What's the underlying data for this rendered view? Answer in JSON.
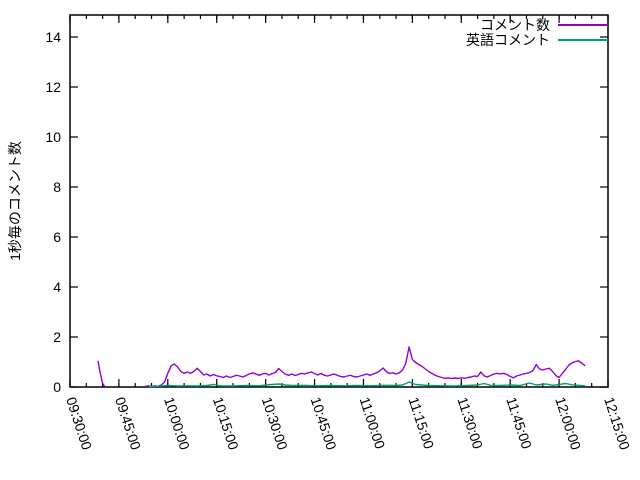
{
  "chart_data": {
    "type": "line",
    "title": "",
    "xlabel": "",
    "ylabel": "1秒毎のコメント数",
    "background": "#ffffff",
    "axis_color": "#000000",
    "text_color": "#000000",
    "grid": false,
    "legend_position": "top-right-inside",
    "x_unit": "minutes-after-09:30:00",
    "x_range": [
      0,
      165
    ],
    "y_range": [
      0,
      14.88
    ],
    "x_major_ticks": {
      "values": [
        0,
        15,
        30,
        45,
        60,
        75,
        90,
        105,
        120,
        135,
        150,
        165
      ],
      "labels": [
        "09:30:00",
        "09:45:00",
        "10:00:00",
        "10:15:00",
        "10:30:00",
        "10:45:00",
        "11:00:00",
        "11:15:00",
        "11:30:00",
        "11:45:00",
        "12:00:00",
        "12:15:00"
      ],
      "rotation_deg": 72
    },
    "x_minor_step": 5,
    "y_major_ticks": {
      "values": [
        0,
        2,
        4,
        6,
        8,
        10,
        12,
        14
      ],
      "labels": [
        "0",
        "2",
        "4",
        "6",
        "8",
        "10",
        "12",
        "14"
      ]
    },
    "series": [
      {
        "name": "コメント数",
        "color": "#9400d3",
        "points": [
          [
            8.6,
            1.05
          ],
          [
            9.2,
            0.6
          ],
          [
            10,
            0.15
          ],
          [
            10.6,
            0.02
          ],
          [
            11,
            null
          ],
          [
            23,
            0.02
          ],
          [
            24,
            0.05
          ],
          [
            25,
            0.02
          ],
          [
            26,
            0.05
          ],
          [
            27,
            0.03
          ],
          [
            28,
            0.08
          ],
          [
            29,
            0.2
          ],
          [
            30,
            0.55
          ],
          [
            31,
            0.85
          ],
          [
            32,
            0.92
          ],
          [
            33,
            0.8
          ],
          [
            34,
            0.62
          ],
          [
            35,
            0.55
          ],
          [
            36,
            0.6
          ],
          [
            37,
            0.55
          ],
          [
            38,
            0.62
          ],
          [
            39,
            0.75
          ],
          [
            40,
            0.62
          ],
          [
            41,
            0.48
          ],
          [
            42,
            0.52
          ],
          [
            43,
            0.44
          ],
          [
            44,
            0.5
          ],
          [
            45,
            0.45
          ],
          [
            46,
            0.42
          ],
          [
            47,
            0.38
          ],
          [
            48,
            0.44
          ],
          [
            49,
            0.38
          ],
          [
            50,
            0.42
          ],
          [
            51,
            0.47
          ],
          [
            52,
            0.44
          ],
          [
            53,
            0.4
          ],
          [
            54,
            0.46
          ],
          [
            55,
            0.52
          ],
          [
            56,
            0.57
          ],
          [
            57,
            0.52
          ],
          [
            58,
            0.47
          ],
          [
            59,
            0.52
          ],
          [
            60,
            0.55
          ],
          [
            61,
            0.48
          ],
          [
            62,
            0.54
          ],
          [
            63,
            0.58
          ],
          [
            64,
            0.74
          ],
          [
            65,
            0.62
          ],
          [
            66,
            0.52
          ],
          [
            67,
            0.47
          ],
          [
            68,
            0.52
          ],
          [
            69,
            0.46
          ],
          [
            70,
            0.5
          ],
          [
            71,
            0.55
          ],
          [
            72,
            0.52
          ],
          [
            73,
            0.57
          ],
          [
            74,
            0.6
          ],
          [
            75,
            0.54
          ],
          [
            76,
            0.48
          ],
          [
            77,
            0.54
          ],
          [
            78,
            0.47
          ],
          [
            79,
            0.44
          ],
          [
            80,
            0.48
          ],
          [
            81,
            0.52
          ],
          [
            82,
            0.47
          ],
          [
            83,
            0.42
          ],
          [
            84,
            0.4
          ],
          [
            85,
            0.44
          ],
          [
            86,
            0.47
          ],
          [
            87,
            0.42
          ],
          [
            88,
            0.4
          ],
          [
            89,
            0.44
          ],
          [
            90,
            0.48
          ],
          [
            91,
            0.52
          ],
          [
            92,
            0.47
          ],
          [
            93,
            0.52
          ],
          [
            94,
            0.57
          ],
          [
            95,
            0.64
          ],
          [
            96,
            0.76
          ],
          [
            97,
            0.62
          ],
          [
            98,
            0.54
          ],
          [
            99,
            0.57
          ],
          [
            100,
            0.52
          ],
          [
            101,
            0.57
          ],
          [
            102,
            0.68
          ],
          [
            103,
            0.95
          ],
          [
            104,
            1.6
          ],
          [
            105,
            1.1
          ],
          [
            106,
            0.98
          ],
          [
            107,
            0.9
          ],
          [
            108,
            0.82
          ],
          [
            109,
            0.72
          ],
          [
            110,
            0.62
          ],
          [
            111,
            0.54
          ],
          [
            112,
            0.47
          ],
          [
            113,
            0.42
          ],
          [
            114,
            0.38
          ],
          [
            115,
            0.35
          ],
          [
            116,
            0.37
          ],
          [
            117,
            0.34
          ],
          [
            118,
            0.36
          ],
          [
            119,
            0.34
          ],
          [
            120,
            0.37
          ],
          [
            121,
            0.35
          ],
          [
            122,
            0.38
          ],
          [
            123,
            0.4
          ],
          [
            124,
            0.44
          ],
          [
            125,
            0.42
          ],
          [
            126,
            0.6
          ],
          [
            127,
            0.45
          ],
          [
            128,
            0.4
          ],
          [
            129,
            0.46
          ],
          [
            130,
            0.52
          ],
          [
            131,
            0.55
          ],
          [
            132,
            0.52
          ],
          [
            133,
            0.55
          ],
          [
            134,
            0.5
          ],
          [
            135,
            0.42
          ],
          [
            136,
            0.37
          ],
          [
            137,
            0.44
          ],
          [
            138,
            0.48
          ],
          [
            139,
            0.52
          ],
          [
            140,
            0.55
          ],
          [
            141,
            0.58
          ],
          [
            142,
            0.66
          ],
          [
            143,
            0.9
          ],
          [
            144,
            0.72
          ],
          [
            145,
            0.68
          ],
          [
            146,
            0.72
          ],
          [
            147,
            0.75
          ],
          [
            148,
            0.62
          ],
          [
            149,
            0.46
          ],
          [
            150,
            0.38
          ],
          [
            151,
            0.55
          ],
          [
            152,
            0.7
          ],
          [
            153,
            0.88
          ],
          [
            154,
            0.96
          ],
          [
            155,
            1.02
          ],
          [
            156,
            1.05
          ],
          [
            157,
            0.95
          ],
          [
            158,
            0.85
          ]
        ]
      },
      {
        "name": "英語コメント",
        "color": "#009e73",
        "points": [
          [
            24,
            0.02
          ],
          [
            27,
            0.03
          ],
          [
            30,
            0.06
          ],
          [
            33,
            0.04
          ],
          [
            36,
            0.05
          ],
          [
            39,
            0.04
          ],
          [
            42,
            0.06
          ],
          [
            44,
            0.1
          ],
          [
            46,
            0.05
          ],
          [
            50,
            0.04
          ],
          [
            54,
            0.06
          ],
          [
            58,
            0.05
          ],
          [
            60,
            0.08
          ],
          [
            62,
            0.1
          ],
          [
            64,
            0.12
          ],
          [
            66,
            0.08
          ],
          [
            68,
            0.06
          ],
          [
            72,
            0.07
          ],
          [
            76,
            0.05
          ],
          [
            80,
            0.06
          ],
          [
            84,
            0.05
          ],
          [
            88,
            0.06
          ],
          [
            92,
            0.05
          ],
          [
            96,
            0.07
          ],
          [
            100,
            0.06
          ],
          [
            102,
            0.08
          ],
          [
            104,
            0.2
          ],
          [
            106,
            0.1
          ],
          [
            110,
            0.06
          ],
          [
            114,
            0.05
          ],
          [
            118,
            0.04
          ],
          [
            122,
            0.06
          ],
          [
            125,
            0.08
          ],
          [
            127,
            0.14
          ],
          [
            129,
            0.07
          ],
          [
            132,
            0.06
          ],
          [
            135,
            0.08
          ],
          [
            138,
            0.06
          ],
          [
            141,
            0.16
          ],
          [
            143,
            0.08
          ],
          [
            146,
            0.12
          ],
          [
            148,
            0.07
          ],
          [
            150,
            0.1
          ],
          [
            152,
            0.14
          ],
          [
            154,
            0.09
          ],
          [
            156,
            0.07
          ],
          [
            158,
            0.05
          ]
        ]
      }
    ],
    "legend": {
      "entries": [
        {
          "label": "コメント数",
          "color": "#9400d3"
        },
        {
          "label": "英語コメント",
          "color": "#009e73"
        }
      ]
    }
  }
}
